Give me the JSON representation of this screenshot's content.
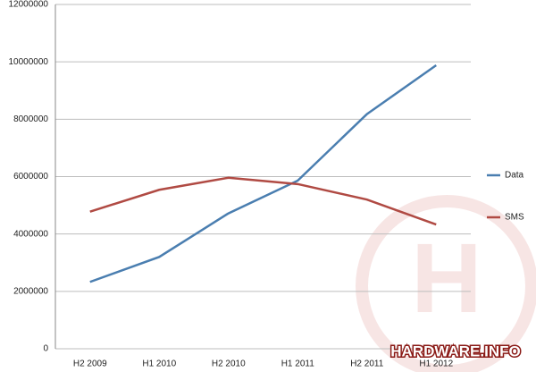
{
  "chart_data": {
    "type": "line",
    "categories": [
      "H2 2009",
      "H1 2010",
      "H2 2010",
      "H1 2011",
      "H2 2011",
      "H1 2012"
    ],
    "series": [
      {
        "name": "Data",
        "color": "#4a7eb0",
        "values": [
          2330000,
          3200000,
          4720000,
          5860000,
          8180000,
          9880000
        ]
      },
      {
        "name": "SMS",
        "color": "#b04a43",
        "values": [
          4780000,
          5540000,
          5960000,
          5740000,
          5200000,
          4330000
        ]
      }
    ],
    "ylim": [
      0,
      12000000
    ],
    "yticks": [
      0,
      2000000,
      4000000,
      6000000,
      8000000,
      10000000,
      12000000
    ],
    "grid": true,
    "legend": "right",
    "watermark": "HARDWARE.INFO"
  }
}
